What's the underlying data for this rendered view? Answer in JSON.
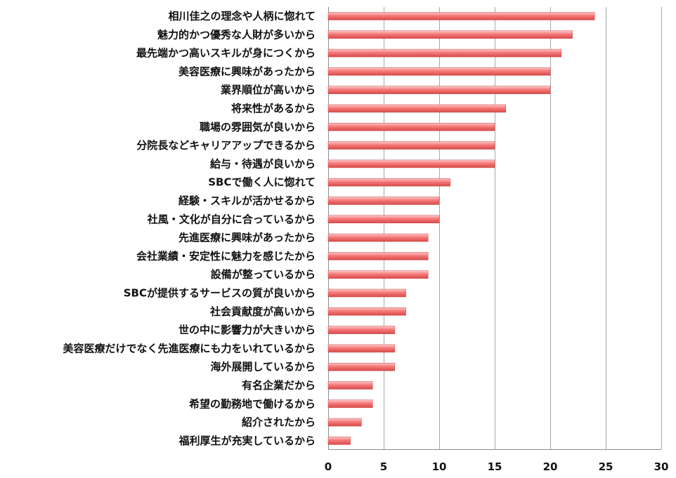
{
  "colors": {
    "bar_light": "#ffc9c9",
    "bar_mid": "#f57878",
    "bar_dark": "#d84a4a",
    "bar_stroke": "#c44848"
  },
  "chart_data": {
    "type": "bar",
    "orientation": "horizontal",
    "title": "",
    "xlabel": "",
    "ylabel": "",
    "xlim": [
      0,
      30
    ],
    "ticks": [
      0,
      5,
      10,
      15,
      20,
      25,
      30
    ],
    "grid": true,
    "legend": "none",
    "categories": [
      "相川佳之の理念や人柄に惚れて",
      "魅力的かつ優秀な人財が多いから",
      "最先端かつ高いスキルが身につくから",
      "美容医療に興味があったから",
      "業界順位が高いから",
      "将来性があるから",
      "職場の雰囲気が良いから",
      "分院長などキャリアアップできるから",
      "給与・待遇が良いから",
      "SBCで働く人に惚れて",
      "経験・スキルが活かせるから",
      "社風・文化が自分に合っているから",
      "先進医療に興味があったから",
      "会社業績・安定性に魅力を感じたから",
      "設備が整っているから",
      "SBCが提供するサービスの質が良いから",
      "社会貢献度が高いから",
      "世の中に影響力が大きいから",
      "美容医療だけでなく先進医療にも力をいれているから",
      "海外展開しているから",
      "有名企業だから",
      "希望の勤務地で働けるから",
      "紹介されたから",
      "福利厚生が充実しているから"
    ],
    "values": [
      24,
      22,
      21,
      20,
      20,
      16,
      15,
      15,
      15,
      11,
      10,
      10,
      9,
      9,
      9,
      7,
      7,
      6,
      6,
      6,
      4,
      4,
      3,
      2
    ]
  }
}
